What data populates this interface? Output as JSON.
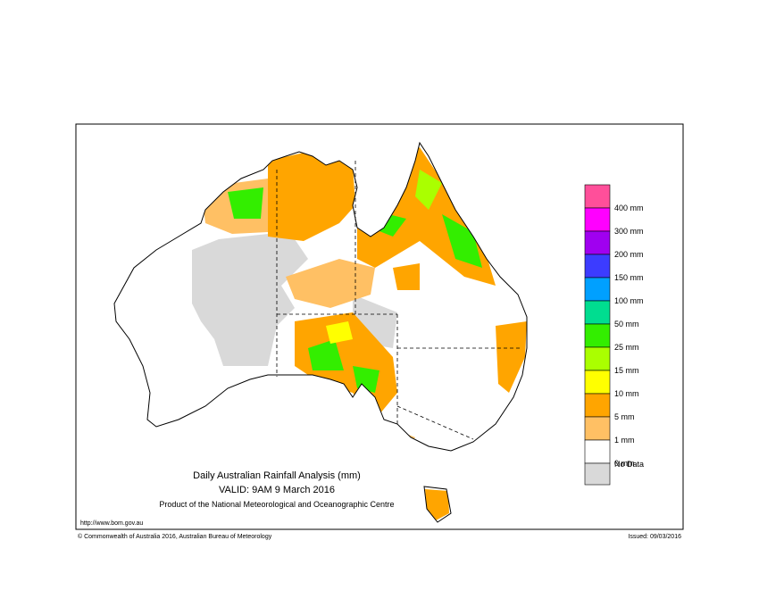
{
  "map": {
    "title": "Daily Australian Rainfall Analysis (mm)",
    "valid": "VALID: 9AM  9 March 2016",
    "producer": "Product of the National Meteorological and Oceanographic Centre",
    "url": "http://www.bom.gov.au",
    "copyright": "© Commonwealth of Australia 2016, Australian Bureau of Meteorology",
    "issued": "Issued: 09/03/2016",
    "legend": {
      "colors": [
        "#ff4f9a",
        "#ff00ff",
        "#a000f0",
        "#3c3cff",
        "#00a0ff",
        "#00dd90",
        "#33ee00",
        "#aaff00",
        "#ffff00",
        "#ffa500",
        "#ffc064",
        "#ffffff",
        "#d9d9d9"
      ],
      "labels": [
        "400 mm",
        "300 mm",
        "200 mm",
        "150 mm",
        "100 mm",
        "50 mm",
        "25 mm",
        "15 mm",
        "10 mm",
        "5 mm",
        "1 mm",
        "0 mm",
        "No Data"
      ]
    }
  }
}
